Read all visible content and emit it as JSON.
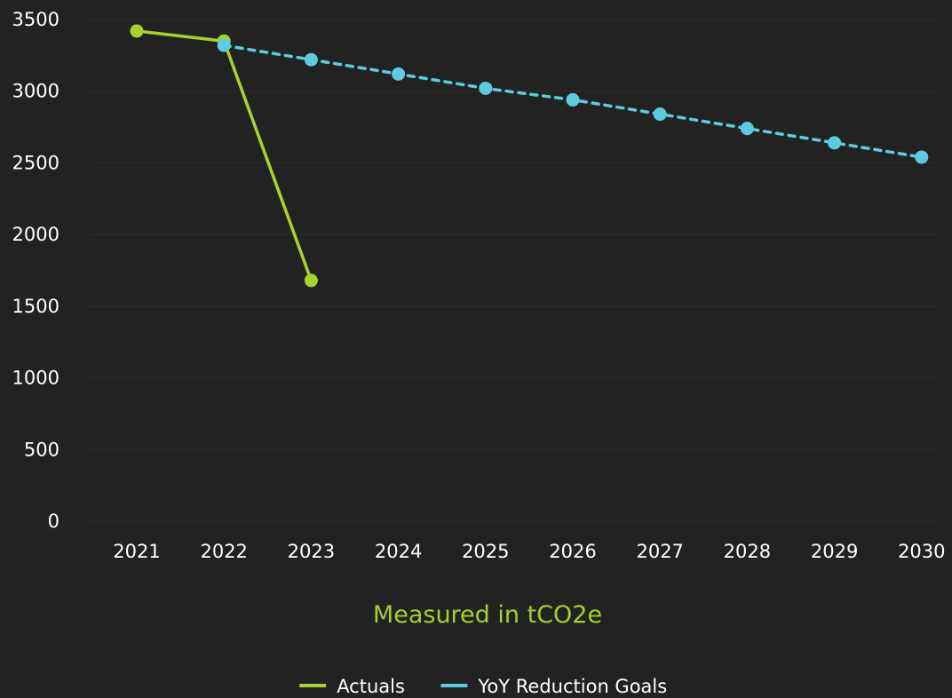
{
  "chart_data": {
    "type": "line",
    "x": [
      "2021",
      "2022",
      "2023",
      "2024",
      "2025",
      "2026",
      "2027",
      "2028",
      "2029",
      "2030"
    ],
    "xlabel": "Measured in tCO2e",
    "ylabel": "",
    "ylim": [
      0,
      3500
    ],
    "yticks": [
      0,
      500,
      1000,
      1500,
      2000,
      2500,
      3000,
      3500
    ],
    "grid": true,
    "legend_position": "bottom-center",
    "series": [
      {
        "name": "Actuals",
        "color": "#a8d130",
        "dash": "solid",
        "values": [
          3420,
          3350,
          1680,
          null,
          null,
          null,
          null,
          null,
          null,
          null
        ]
      },
      {
        "name": "YoY Reduction Goals",
        "color": "#5ccbe0",
        "dash": "dashed",
        "values": [
          null,
          3320,
          3220,
          3120,
          3020,
          2940,
          2840,
          2740,
          2640,
          2540
        ]
      }
    ]
  }
}
